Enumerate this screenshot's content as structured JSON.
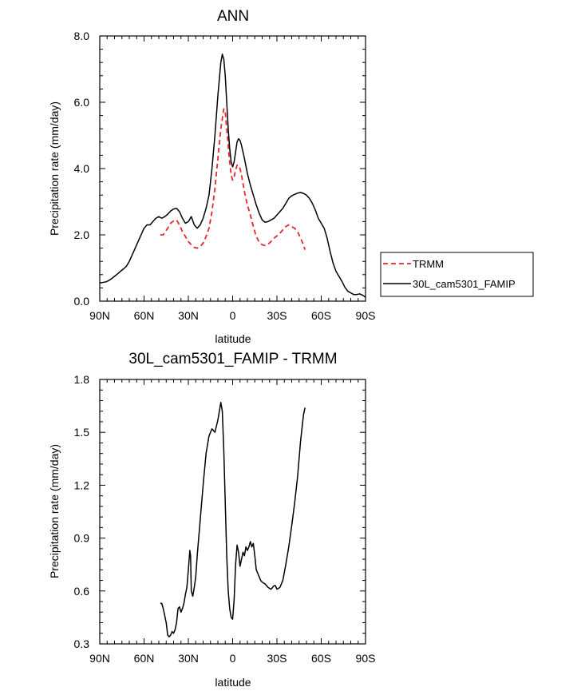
{
  "chart_data": [
    {
      "type": "line",
      "title": "ANN",
      "xlabel": "latitude",
      "ylabel": "Precipitation rate (mm/day)",
      "xlim": [
        90,
        -90
      ],
      "ylim": [
        0.0,
        8.0
      ],
      "xticks": [
        90,
        60,
        30,
        0,
        -30,
        -60,
        -90
      ],
      "xtick_labels": [
        "90N",
        "60N",
        "30N",
        "0",
        "30S",
        "60S",
        "90S"
      ],
      "yticks": [
        0.0,
        2.0,
        4.0,
        6.0,
        8.0
      ],
      "ytick_labels": [
        "0.0",
        "2.0",
        "4.0",
        "6.0",
        "8.0"
      ],
      "legend": [
        "TRMM",
        "30L_cam5301_FAMIP"
      ],
      "series": [
        {
          "name": "TRMM",
          "color": "#e8262a",
          "style": "dashed",
          "x": [
            49,
            47,
            44,
            42,
            40,
            38,
            36,
            34,
            32,
            30,
            28,
            26,
            24,
            22,
            20,
            18,
            16,
            14,
            12,
            10,
            8,
            6,
            5,
            4,
            3,
            2,
            1,
            0,
            -1,
            -2,
            -3,
            -4,
            -5,
            -6,
            -8,
            -10,
            -12,
            -14,
            -16,
            -18,
            -20,
            -22,
            -24,
            -26,
            -28,
            -30,
            -32,
            -34,
            -36,
            -38,
            -40,
            -42,
            -44,
            -46,
            -48,
            -49
          ],
          "values": [
            2.0,
            2.0,
            2.2,
            2.35,
            2.42,
            2.45,
            2.3,
            2.1,
            1.95,
            1.8,
            1.7,
            1.62,
            1.6,
            1.65,
            1.75,
            1.95,
            2.2,
            2.7,
            3.4,
            4.3,
            5.2,
            5.8,
            5.7,
            5.2,
            4.7,
            4.2,
            3.8,
            3.65,
            3.75,
            3.95,
            4.1,
            4.1,
            4.0,
            3.8,
            3.3,
            2.9,
            2.6,
            2.25,
            1.95,
            1.78,
            1.7,
            1.68,
            1.72,
            1.8,
            1.9,
            1.97,
            2.05,
            2.15,
            2.25,
            2.3,
            2.25,
            2.2,
            2.1,
            1.9,
            1.7,
            1.55
          ]
        },
        {
          "name": "30L_cam5301_FAMIP",
          "color": "#000000",
          "style": "solid",
          "x": [
            90,
            86,
            84,
            82,
            80,
            78,
            76,
            74,
            72,
            70,
            68,
            66,
            64,
            62,
            60,
            58,
            56,
            54,
            52,
            50,
            48,
            46,
            44,
            42,
            40,
            38,
            36,
            34,
            32,
            30,
            28,
            26,
            24,
            22,
            20,
            18,
            16,
            14,
            12,
            10,
            8,
            7,
            6,
            5,
            4,
            3,
            2,
            1,
            0,
            -1,
            -2,
            -3,
            -4,
            -5,
            -6,
            -7,
            -8,
            -10,
            -12,
            -14,
            -16,
            -18,
            -20,
            -22,
            -24,
            -26,
            -28,
            -30,
            -32,
            -34,
            -36,
            -38,
            -40,
            -42,
            -44,
            -46,
            -48,
            -50,
            -52,
            -54,
            -56,
            -58,
            -60,
            -62,
            -64,
            -66,
            -68,
            -70,
            -72,
            -74,
            -76,
            -78,
            -80,
            -82,
            -84,
            -86,
            -88,
            -90
          ],
          "values": [
            0.55,
            0.58,
            0.62,
            0.68,
            0.75,
            0.82,
            0.9,
            0.97,
            1.05,
            1.2,
            1.4,
            1.6,
            1.8,
            2.0,
            2.2,
            2.3,
            2.3,
            2.4,
            2.5,
            2.55,
            2.5,
            2.55,
            2.62,
            2.72,
            2.78,
            2.8,
            2.7,
            2.5,
            2.35,
            2.4,
            2.55,
            2.3,
            2.2,
            2.3,
            2.5,
            2.8,
            3.2,
            4.0,
            5.0,
            6.2,
            7.2,
            7.45,
            7.3,
            6.8,
            6.0,
            5.2,
            4.6,
            4.2,
            4.05,
            4.2,
            4.5,
            4.8,
            4.9,
            4.85,
            4.7,
            4.5,
            4.3,
            3.85,
            3.5,
            3.2,
            2.9,
            2.65,
            2.45,
            2.38,
            2.4,
            2.45,
            2.5,
            2.6,
            2.7,
            2.8,
            2.95,
            3.1,
            3.18,
            3.22,
            3.26,
            3.28,
            3.25,
            3.2,
            3.1,
            2.95,
            2.75,
            2.5,
            2.35,
            2.2,
            1.9,
            1.5,
            1.15,
            0.9,
            0.75,
            0.6,
            0.42,
            0.3,
            0.25,
            0.2,
            0.2,
            0.22,
            0.18,
            0.12
          ]
        }
      ]
    },
    {
      "type": "line",
      "title": "30L_cam5301_FAMIP - TRMM",
      "xlabel": "latitude",
      "ylabel": "Precipitation rate (mm/day)",
      "xlim": [
        90,
        -90
      ],
      "ylim": [
        0.3,
        1.8
      ],
      "xticks": [
        90,
        60,
        30,
        0,
        -30,
        -60,
        -90
      ],
      "xtick_labels": [
        "90N",
        "60N",
        "30N",
        "0",
        "30S",
        "60S",
        "90S"
      ],
      "yticks": [
        0.3,
        0.6,
        0.9,
        1.2,
        1.5,
        1.8
      ],
      "ytick_labels": [
        "0.3",
        "0.6",
        "0.9",
        "1.2",
        "1.5",
        "1.8"
      ],
      "series": [
        {
          "name": "30L_cam5301_FAMIP - TRMM",
          "color": "#000000",
          "style": "solid",
          "x": [
            49,
            48,
            47,
            46,
            45,
            44,
            43,
            42,
            41,
            40,
            39,
            38,
            37,
            36,
            35,
            34,
            33,
            32,
            31,
            30,
            29,
            28.5,
            28,
            27,
            26,
            25,
            24,
            23,
            22,
            20,
            18,
            16,
            14,
            12,
            10,
            9,
            8,
            7,
            6,
            5,
            4,
            3,
            2,
            1,
            0,
            -1,
            -2,
            -3,
            -4,
            -5,
            -6,
            -7,
            -8,
            -9,
            -10,
            -11,
            -12,
            -13,
            -14,
            -15,
            -16,
            -17,
            -18,
            -19,
            -20,
            -22,
            -24,
            -26,
            -28,
            -29,
            -30,
            -32,
            -34,
            -36,
            -38,
            -40,
            -42,
            -44,
            -46,
            -48,
            -49
          ],
          "values": [
            0.53,
            0.53,
            0.5,
            0.46,
            0.42,
            0.35,
            0.34,
            0.35,
            0.37,
            0.36,
            0.38,
            0.42,
            0.5,
            0.51,
            0.48,
            0.5,
            0.53,
            0.58,
            0.62,
            0.72,
            0.83,
            0.8,
            0.6,
            0.57,
            0.62,
            0.68,
            0.8,
            0.9,
            1.0,
            1.2,
            1.38,
            1.48,
            1.52,
            1.5,
            1.57,
            1.62,
            1.67,
            1.62,
            1.4,
            1.1,
            0.8,
            0.6,
            0.5,
            0.45,
            0.44,
            0.55,
            0.75,
            0.86,
            0.82,
            0.74,
            0.78,
            0.82,
            0.8,
            0.85,
            0.83,
            0.85,
            0.88,
            0.85,
            0.87,
            0.8,
            0.72,
            0.7,
            0.68,
            0.66,
            0.65,
            0.64,
            0.62,
            0.61,
            0.63,
            0.63,
            0.61,
            0.62,
            0.66,
            0.75,
            0.85,
            0.97,
            1.1,
            1.25,
            1.45,
            1.6,
            1.64
          ]
        }
      ]
    }
  ]
}
